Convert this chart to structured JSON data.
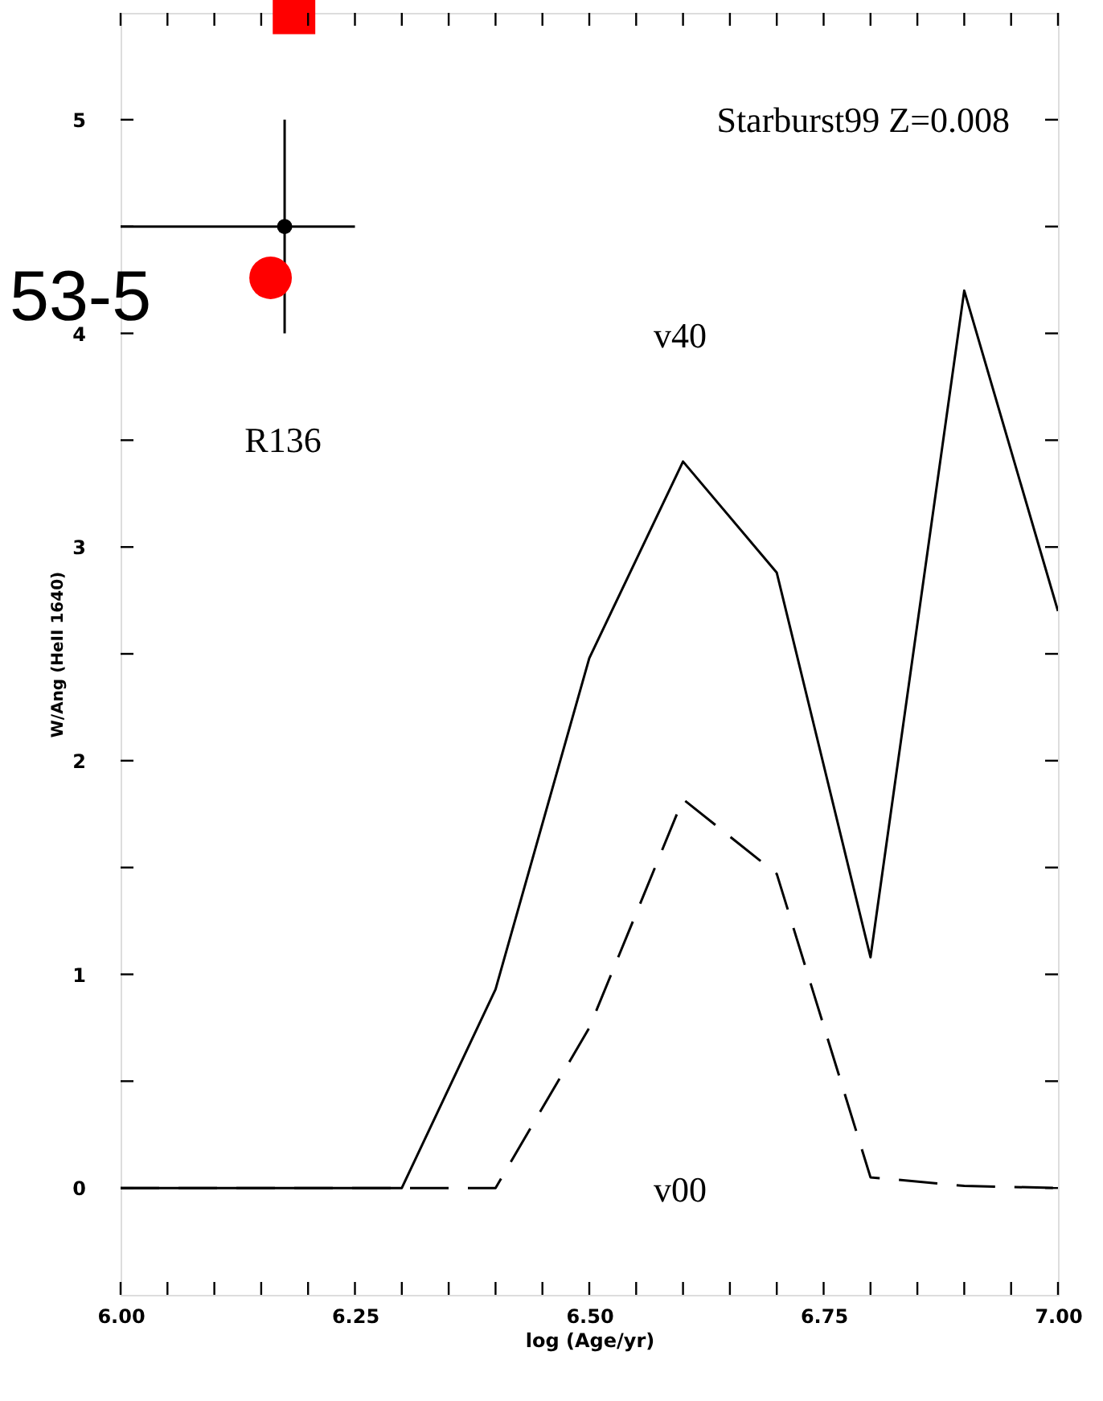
{
  "chart_data": {
    "type": "line",
    "xlabel": "log (Age/yr)",
    "ylabel": "W/Ang (HeII 1640)",
    "xlim": [
      6.0,
      7.0
    ],
    "ylim": [
      -0.5,
      5.5
    ],
    "xticks": [
      {
        "value": 6.0,
        "label": "6.00"
      },
      {
        "value": 6.05,
        "label": null
      },
      {
        "value": 6.1,
        "label": null
      },
      {
        "value": 6.15,
        "label": null
      },
      {
        "value": 6.2,
        "label": null
      },
      {
        "value": 6.25,
        "label": "6.25"
      },
      {
        "value": 6.3,
        "label": null
      },
      {
        "value": 6.35,
        "label": null
      },
      {
        "value": 6.4,
        "label": null
      },
      {
        "value": 6.45,
        "label": null
      },
      {
        "value": 6.5,
        "label": "6.50"
      },
      {
        "value": 6.55,
        "label": null
      },
      {
        "value": 6.6,
        "label": null
      },
      {
        "value": 6.65,
        "label": null
      },
      {
        "value": 6.7,
        "label": null
      },
      {
        "value": 6.75,
        "label": "6.75"
      },
      {
        "value": 6.8,
        "label": null
      },
      {
        "value": 6.85,
        "label": null
      },
      {
        "value": 6.9,
        "label": null
      },
      {
        "value": 6.95,
        "label": null
      },
      {
        "value": 7.0,
        "label": "7.00"
      }
    ],
    "yticks": [
      0,
      {
        "value": 0.5,
        "label": null
      },
      1,
      {
        "value": 1.5,
        "label": null
      },
      2,
      {
        "value": 2.5,
        "label": null
      },
      3,
      {
        "value": 3.5,
        "label": null
      },
      4,
      {
        "value": 4.5,
        "label": null
      },
      5
    ],
    "grid": false,
    "series": [
      {
        "type": "line",
        "color": "#000000",
        "line_style": "solid",
        "x": [
          6.0,
          6.3,
          6.4,
          6.5,
          6.6,
          6.7,
          6.8,
          6.9,
          7.0
        ],
        "values": [
          0,
          0,
          0.93,
          2.48,
          3.4,
          2.88,
          1.08,
          4.2,
          2.7
        ]
      },
      {
        "type": "line",
        "color": "#000000",
        "line_style": "dashed",
        "x": [
          6.0,
          6.4,
          6.5,
          6.6,
          6.7,
          6.8,
          6.9,
          7.0
        ],
        "values": [
          0,
          0,
          0.75,
          1.82,
          1.47,
          0.05,
          0.01,
          0
        ]
      },
      {
        "type": "scatter",
        "color": "#000000",
        "marker": "circle",
        "x": [
          6.175
        ],
        "values": [
          4.5
        ],
        "errors": [
          [
            4.0,
            5.0
          ]
        ],
        "xerrors": [
          [
            6.0,
            6.25
          ]
        ]
      },
      {
        "type": "scatter",
        "color": "#ff0000",
        "marker": "circle",
        "x": [
          6.16
        ],
        "values": [
          4.26
        ]
      },
      {
        "type": "scatter",
        "color": "#ff0000",
        "marker": "square",
        "x": [
          6.185
        ],
        "values": [
          5.5
        ]
      }
    ],
    "annotations": [
      "Starburst99 Z=0.008",
      "53-5",
      "v40",
      "v00",
      "R136"
    ]
  }
}
